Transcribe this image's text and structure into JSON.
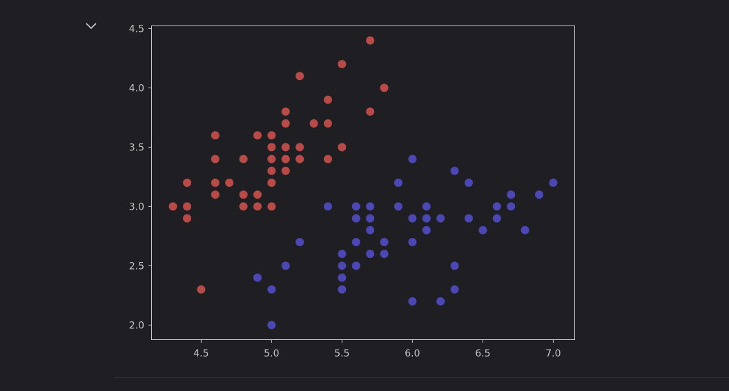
{
  "colors": {
    "background": "#1f1f23",
    "axes_frame": "#c8c8c8",
    "tick_text": "#c4c4c4",
    "series_red": "#b84a48",
    "series_blue": "#4b47b5"
  },
  "ui": {
    "collapse_icon": "chevron-down-icon"
  },
  "chart_data": {
    "type": "scatter",
    "xlim": [
      4.15,
      7.15
    ],
    "ylim": [
      1.88,
      4.52
    ],
    "xticks": [
      4.5,
      5.0,
      5.5,
      6.0,
      6.5,
      7.0
    ],
    "yticks": [
      2.0,
      2.5,
      3.0,
      3.5,
      4.0,
      4.5
    ],
    "xtick_labels": [
      "4.5",
      "5.0",
      "5.5",
      "6.0",
      "6.5",
      "7.0"
    ],
    "ytick_labels": [
      "2.0",
      "2.5",
      "3.0",
      "3.5",
      "4.0",
      "4.5"
    ],
    "grid": false,
    "series": [
      {
        "color": "#b84a48",
        "points": [
          [
            4.3,
            3.0
          ],
          [
            4.4,
            3.2
          ],
          [
            4.4,
            3.0
          ],
          [
            4.4,
            2.9
          ],
          [
            4.5,
            2.3
          ],
          [
            4.6,
            3.6
          ],
          [
            4.6,
            3.4
          ],
          [
            4.6,
            3.2
          ],
          [
            4.6,
            3.1
          ],
          [
            4.7,
            3.2
          ],
          [
            4.8,
            3.4
          ],
          [
            4.8,
            3.1
          ],
          [
            4.8,
            3.0
          ],
          [
            4.9,
            3.6
          ],
          [
            4.9,
            3.1
          ],
          [
            4.9,
            3.0
          ],
          [
            5.0,
            3.6
          ],
          [
            5.0,
            3.5
          ],
          [
            5.0,
            3.4
          ],
          [
            5.0,
            3.3
          ],
          [
            5.0,
            3.2
          ],
          [
            5.0,
            3.0
          ],
          [
            5.1,
            3.8
          ],
          [
            5.1,
            3.7
          ],
          [
            5.1,
            3.5
          ],
          [
            5.1,
            3.4
          ],
          [
            5.1,
            3.3
          ],
          [
            5.2,
            4.1
          ],
          [
            5.2,
            3.5
          ],
          [
            5.2,
            3.4
          ],
          [
            5.3,
            3.7
          ],
          [
            5.4,
            3.9
          ],
          [
            5.4,
            3.7
          ],
          [
            5.4,
            3.4
          ],
          [
            5.5,
            4.2
          ],
          [
            5.5,
            3.5
          ],
          [
            5.7,
            4.4
          ],
          [
            5.7,
            3.8
          ],
          [
            5.8,
            4.0
          ]
        ]
      },
      {
        "color": "#4b47b5",
        "points": [
          [
            4.9,
            2.4
          ],
          [
            5.0,
            2.3
          ],
          [
            5.0,
            2.0
          ],
          [
            5.1,
            2.5
          ],
          [
            5.2,
            2.7
          ],
          [
            5.4,
            3.0
          ],
          [
            5.5,
            2.6
          ],
          [
            5.5,
            2.5
          ],
          [
            5.5,
            2.4
          ],
          [
            5.5,
            2.3
          ],
          [
            5.6,
            3.0
          ],
          [
            5.6,
            2.9
          ],
          [
            5.6,
            2.7
          ],
          [
            5.6,
            2.5
          ],
          [
            5.7,
            3.0
          ],
          [
            5.7,
            2.9
          ],
          [
            5.7,
            2.8
          ],
          [
            5.7,
            2.6
          ],
          [
            5.8,
            2.7
          ],
          [
            5.8,
            2.6
          ],
          [
            5.9,
            3.2
          ],
          [
            5.9,
            3.0
          ],
          [
            6.0,
            3.4
          ],
          [
            6.0,
            2.9
          ],
          [
            6.0,
            2.7
          ],
          [
            6.0,
            2.2
          ],
          [
            6.1,
            3.0
          ],
          [
            6.1,
            2.9
          ],
          [
            6.1,
            2.8
          ],
          [
            6.2,
            2.9
          ],
          [
            6.2,
            2.2
          ],
          [
            6.3,
            3.3
          ],
          [
            6.3,
            2.5
          ],
          [
            6.3,
            2.3
          ],
          [
            6.4,
            3.2
          ],
          [
            6.4,
            2.9
          ],
          [
            6.5,
            2.8
          ],
          [
            6.6,
            3.0
          ],
          [
            6.6,
            2.9
          ],
          [
            6.7,
            3.1
          ],
          [
            6.7,
            3.0
          ],
          [
            6.8,
            2.8
          ],
          [
            6.9,
            3.1
          ],
          [
            7.0,
            3.2
          ]
        ]
      }
    ]
  }
}
